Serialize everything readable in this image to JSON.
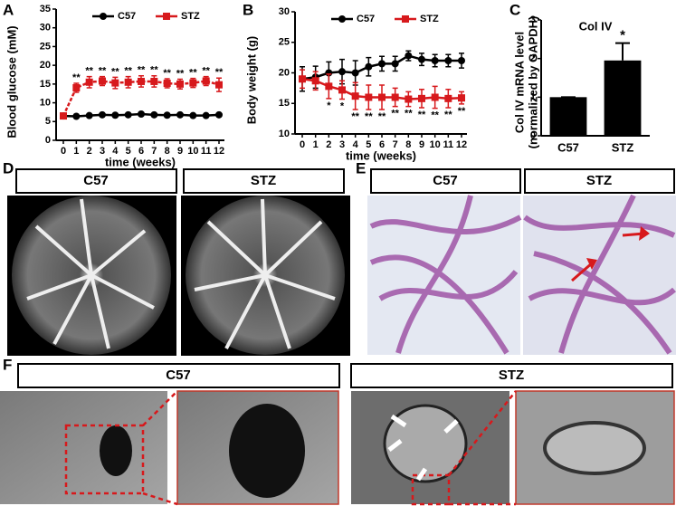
{
  "chart_data": [
    {
      "type": "line",
      "label": "A",
      "x": [
        0,
        1,
        2,
        3,
        4,
        5,
        6,
        7,
        8,
        9,
        10,
        11,
        12
      ],
      "xlabel": "time (weeks)",
      "ylabel": "Blood glucose (mM)",
      "xlim": [
        0,
        12
      ],
      "xticks": [
        0,
        1,
        2,
        3,
        4,
        5,
        6,
        7,
        8,
        9,
        10,
        11,
        12
      ],
      "ylim": [
        0,
        35
      ],
      "yticks": [
        0,
        5,
        10,
        15,
        20,
        25,
        30,
        35
      ],
      "series": [
        {
          "name": "C57",
          "color": "#000000",
          "marker": "circle",
          "values": [
            6.5,
            6.4,
            6.6,
            6.8,
            6.7,
            6.8,
            7.0,
            6.8,
            6.7,
            6.8,
            6.6,
            6.6,
            6.8
          ],
          "errors": [
            0.3,
            0.3,
            0.3,
            0.3,
            0.3,
            0.3,
            0.3,
            0.3,
            0.3,
            0.3,
            0.3,
            0.3,
            0.3
          ]
        },
        {
          "name": "STZ",
          "color": "#d7191c",
          "marker": "square",
          "values": [
            6.5,
            14.0,
            15.5,
            15.8,
            15.3,
            15.5,
            15.7,
            15.7,
            15.2,
            15.0,
            15.3,
            15.8,
            14.8
          ],
          "errors": [
            0.3,
            1.2,
            1.5,
            1.2,
            1.5,
            1.5,
            1.5,
            1.5,
            1.2,
            1.3,
            1.2,
            1.2,
            1.8
          ],
          "significance": [
            null,
            "**",
            "**",
            "**",
            "**",
            "**",
            "**",
            "**",
            "**",
            "**",
            "**",
            "**",
            "**"
          ]
        }
      ]
    },
    {
      "type": "line",
      "label": "B",
      "x": [
        0,
        1,
        2,
        3,
        4,
        5,
        6,
        7,
        8,
        9,
        10,
        11,
        12
      ],
      "xlabel": "time (weeks)",
      "ylabel": "Body weight (g)",
      "xlim": [
        0,
        12
      ],
      "xticks": [
        0,
        1,
        2,
        3,
        4,
        5,
        6,
        7,
        8,
        9,
        10,
        11,
        12
      ],
      "ylim": [
        10,
        30
      ],
      "yticks": [
        10,
        15,
        20,
        25,
        30
      ],
      "series": [
        {
          "name": "C57",
          "color": "#000000",
          "marker": "circle",
          "values": [
            19.0,
            19.3,
            20.0,
            20.2,
            20.0,
            21.0,
            21.5,
            21.5,
            22.8,
            22.2,
            22.0,
            22.0,
            22.0
          ],
          "errors": [
            2.0,
            1.8,
            1.8,
            2.0,
            2.0,
            1.5,
            1.2,
            1.2,
            0.8,
            1.0,
            1.0,
            1.0,
            1.2
          ]
        },
        {
          "name": "STZ",
          "color": "#d7191c",
          "marker": "square",
          "values": [
            19.0,
            18.7,
            17.8,
            17.2,
            16.2,
            16.0,
            16.0,
            16.0,
            15.7,
            15.8,
            16.0,
            15.8,
            15.9
          ],
          "errors": [
            1.5,
            1.5,
            2.0,
            1.5,
            2.2,
            2.0,
            2.0,
            1.5,
            1.2,
            1.5,
            1.8,
            1.5,
            1.0
          ],
          "significance": [
            null,
            null,
            "*",
            "*",
            "**",
            "**",
            "**",
            "**",
            "**",
            "**",
            "**",
            "**",
            "**"
          ]
        }
      ]
    },
    {
      "type": "bar",
      "label": "C",
      "title": "Col IV",
      "ylabel": [
        "Col IV mRNA level",
        "(normalized by GAPDH)"
      ],
      "categories": [
        "C57",
        "STZ"
      ],
      "values": [
        1.0,
        1.95
      ],
      "errors": [
        0,
        0.45
      ],
      "significance": [
        null,
        "*"
      ],
      "color": "#000000",
      "ylim": [
        0,
        3
      ],
      "yticks": [
        0,
        1,
        2,
        3
      ]
    }
  ],
  "panels": {
    "D": {
      "label": "D",
      "headers": [
        "C57",
        "STZ"
      ]
    },
    "E": {
      "label": "E",
      "headers": [
        "C57",
        "STZ"
      ]
    },
    "F": {
      "label": "F",
      "headers": [
        "C57",
        "STZ"
      ]
    }
  }
}
